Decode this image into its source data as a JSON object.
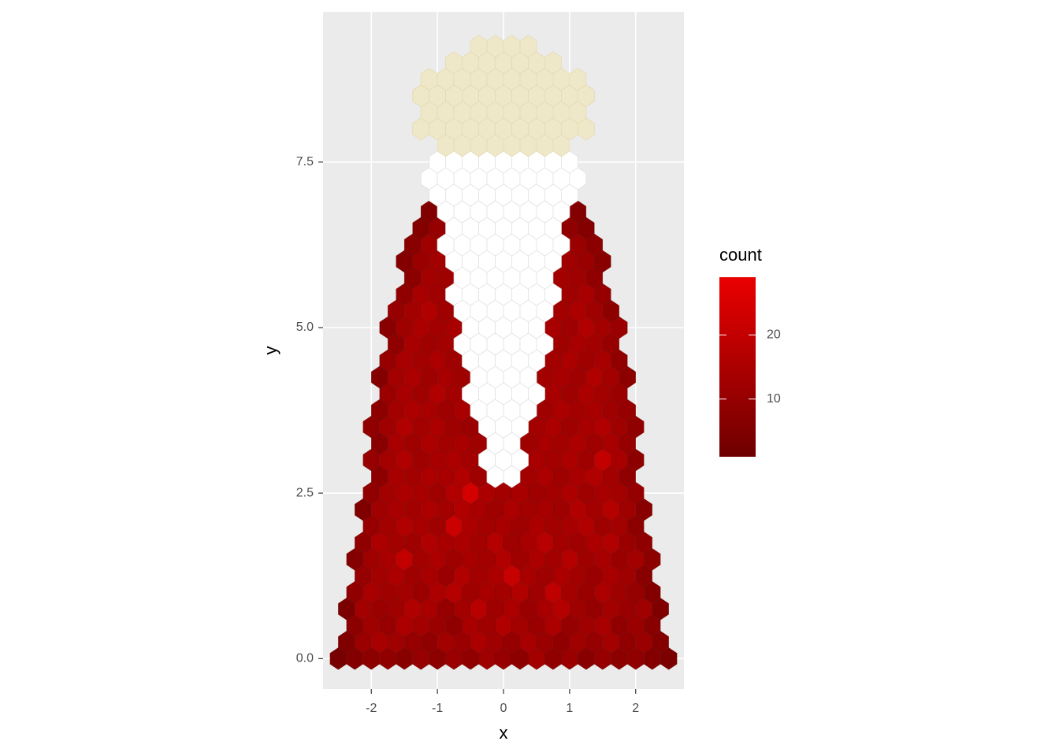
{
  "chart_data": {
    "type": "hexbin",
    "xlabel": "x",
    "ylabel": "y",
    "xlim": [
      -2.73,
      2.73
    ],
    "ylim": [
      -0.46,
      9.77
    ],
    "xticks": [
      -2,
      -1,
      0,
      1,
      2
    ],
    "yticks": [
      {
        "value": 0,
        "label": "0.0"
      },
      {
        "value": 2.5,
        "label": "2.5"
      },
      {
        "value": 5,
        "label": "5.0"
      },
      {
        "value": 7.5,
        "label": "7.5"
      }
    ],
    "grid": true,
    "binwidth": [
      0.25,
      0.25
    ],
    "legend": {
      "title": "count",
      "limits": [
        1,
        29
      ],
      "ticks": [
        10,
        20
      ],
      "colors": [
        "#6e0000",
        "#ea0000"
      ]
    },
    "bins": [
      {
        "y": 0,
        "x0": -2.5,
        "counts": [
          3,
          6,
          8,
          9,
          7,
          10,
          8,
          11,
          9,
          12,
          10,
          8,
          13,
          9,
          11,
          7,
          10,
          8,
          9,
          6,
          4
        ]
      },
      {
        "y": 0.25,
        "x0": -2.375,
        "counts": [
          5,
          11,
          14,
          12,
          10,
          9,
          13,
          11,
          15,
          12,
          10,
          14,
          11,
          9,
          12,
          10,
          13,
          9,
          11,
          6
        ]
      },
      {
        "y": 0.5,
        "x0": -2.25,
        "counts": [
          8,
          12,
          10,
          15,
          13,
          11,
          9,
          14,
          12,
          16,
          13,
          11,
          15,
          10,
          12,
          14,
          9,
          11,
          7
        ]
      },
      {
        "y": 0.75,
        "x0": -2.375,
        "counts": [
          4,
          13,
          11,
          12,
          16,
          14,
          10,
          13,
          18,
          12,
          15,
          11,
          14,
          17,
          12,
          10,
          13,
          11,
          12,
          5
        ]
      },
      {
        "y": 1,
        "x0": -2.25,
        "counts": [
          9,
          14,
          12,
          13,
          11,
          15,
          17,
          12,
          14,
          13,
          16,
          12,
          19,
          13,
          11,
          15,
          12,
          10,
          6
        ]
      },
      {
        "y": 1.25,
        "x0": -2.125,
        "counts": [
          10,
          13,
          15,
          12,
          14,
          11,
          16,
          13,
          15,
          21,
          14,
          12,
          15,
          13,
          11,
          14,
          12,
          7
        ]
      },
      {
        "y": 1.5,
        "x0": -2.25,
        "counts": [
          6,
          12,
          14,
          20,
          13,
          15,
          12,
          14,
          13,
          16,
          12,
          15,
          13,
          17,
          12,
          14,
          11,
          13,
          8
        ]
      },
      {
        "y": 1.75,
        "x0": -2.125,
        "counts": [
          9,
          15,
          13,
          12,
          16,
          14,
          15,
          13,
          17,
          12,
          14,
          18,
          13,
          12,
          15,
          16,
          11,
          9
        ]
      },
      {
        "y": 2,
        "x0": -2,
        "counts": [
          10,
          13,
          16,
          14,
          12,
          22,
          15,
          13,
          14,
          12,
          15,
          13,
          14,
          16,
          12,
          13,
          8
        ]
      },
      {
        "y": 2.25,
        "x0": -2.125,
        "counts": [
          5,
          12,
          14,
          13,
          15,
          13,
          16,
          14,
          12,
          15,
          13,
          14,
          12,
          16,
          13,
          17,
          12,
          7
        ]
      },
      {
        "y": 2.5,
        "x0": -2,
        "counts": [
          9,
          13,
          15,
          14,
          12,
          16,
          24,
          15,
          13,
          14,
          12,
          13,
          15,
          12,
          14,
          13,
          10
        ]
      },
      {
        "y": 2.75,
        "x0": -1.875,
        "counts": [
          8,
          14,
          13,
          15,
          14,
          16,
          12
        ]
      },
      {
        "y": 2.75,
        "x0": 0.375,
        "counts": [
          13,
          15,
          12,
          14,
          16,
          13,
          9
        ]
      },
      {
        "y": 3,
        "x0": -2,
        "counts": [
          10,
          13,
          16,
          12,
          14,
          15,
          13
        ]
      },
      {
        "y": 3,
        "x0": 0.5,
        "counts": [
          14,
          13,
          15,
          12,
          20,
          14,
          8
        ]
      },
      {
        "y": 3.25,
        "x0": -1.875,
        "counts": [
          7,
          14,
          12,
          15,
          13,
          14,
          12
        ]
      },
      {
        "y": 3.25,
        "x0": 0.375,
        "counts": [
          12,
          14,
          13,
          15,
          12,
          14,
          10
        ]
      },
      {
        "y": 3.5,
        "x0": -2,
        "counts": [
          9,
          12,
          16,
          13,
          15,
          12,
          11
        ]
      },
      {
        "y": 3.5,
        "x0": 0.5,
        "counts": [
          13,
          15,
          12,
          14,
          16,
          12,
          9
        ]
      },
      {
        "y": 3.75,
        "x0": -1.875,
        "counts": [
          8,
          13,
          15,
          14,
          12,
          14
        ]
      },
      {
        "y": 3.75,
        "x0": 0.625,
        "counts": [
          12,
          15,
          13,
          14,
          12,
          10
        ]
      },
      {
        "y": 4,
        "x0": -1.75,
        "counts": [
          11,
          14,
          12,
          16,
          13
        ]
      },
      {
        "y": 4,
        "x0": 0.75,
        "counts": [
          14,
          12,
          15,
          13,
          11
        ]
      },
      {
        "y": 4.25,
        "x0": -1.875,
        "counts": [
          6,
          13,
          15,
          12,
          14,
          12
        ]
      },
      {
        "y": 4.25,
        "x0": 0.625,
        "counts": [
          13,
          14,
          12,
          16,
          13,
          8
        ]
      },
      {
        "y": 4.5,
        "x0": -1.75,
        "counts": [
          10,
          14,
          13,
          15,
          12
        ]
      },
      {
        "y": 4.5,
        "x0": 0.75,
        "counts": [
          13,
          15,
          12,
          14,
          9
        ]
      },
      {
        "y": 4.75,
        "x0": -1.625,
        "counts": [
          9,
          14,
          12,
          13
        ]
      },
      {
        "y": 4.75,
        "x0": 0.875,
        "counts": [
          12,
          14,
          13,
          10
        ]
      },
      {
        "y": 5,
        "x0": -1.75,
        "counts": [
          7,
          12,
          15,
          13,
          14
        ]
      },
      {
        "y": 5,
        "x0": 0.75,
        "counts": [
          14,
          12,
          16,
          13,
          11
        ]
      },
      {
        "y": 5.25,
        "x0": -1.625,
        "counts": [
          10,
          13,
          16,
          12
        ]
      },
      {
        "y": 5.25,
        "x0": 0.875,
        "counts": [
          13,
          15,
          12,
          8
        ]
      },
      {
        "y": 5.5,
        "x0": -1.5,
        "counts": [
          9,
          14,
          12
        ]
      },
      {
        "y": 5.5,
        "x0": 1,
        "counts": [
          12,
          14,
          10
        ]
      },
      {
        "y": 5.75,
        "x0": -1.375,
        "counts": [
          8,
          13,
          12
        ]
      },
      {
        "y": 5.75,
        "x0": 0.875,
        "counts": [
          13,
          12,
          9
        ]
      },
      {
        "y": 6,
        "x0": -1.5,
        "counts": [
          6,
          11,
          13
        ]
      },
      {
        "y": 6,
        "x0": 1,
        "counts": [
          12,
          11,
          7
        ]
      },
      {
        "y": 6.25,
        "x0": -1.375,
        "counts": [
          7,
          12
        ]
      },
      {
        "y": 6.25,
        "x0": 1.125,
        "counts": [
          11,
          8
        ]
      },
      {
        "y": 6.5,
        "x0": -1.25,
        "counts": [
          6,
          10
        ]
      },
      {
        "y": 6.5,
        "x0": 1,
        "counts": [
          9,
          6
        ]
      },
      {
        "y": 6.75,
        "x0": -1.125,
        "counts": [
          5
        ]
      },
      {
        "y": 6.75,
        "x0": 1.125,
        "counts": [
          6
        ]
      }
    ],
    "beard": {
      "color": "#ffffff",
      "stroke": "#e2e2e2",
      "rows": [
        {
          "y": 2.75,
          "x": [
            -0.125,
            0.125
          ]
        },
        {
          "y": 3,
          "x": [
            -0.25,
            0.25
          ]
        },
        {
          "y": 3.25,
          "x": [
            -0.125,
            0.125
          ]
        },
        {
          "y": 3.5,
          "x": [
            -0.25,
            0.25
          ]
        },
        {
          "y": 3.75,
          "x": [
            -0.375,
            0.375
          ]
        },
        {
          "y": 4,
          "x": [
            -0.5,
            0.5
          ]
        },
        {
          "y": 4.25,
          "x": [
            -0.375,
            0.375
          ]
        },
        {
          "y": 4.5,
          "x": [
            -0.5,
            0.5
          ]
        },
        {
          "y": 4.75,
          "x": [
            -0.625,
            0.625
          ]
        },
        {
          "y": 5,
          "x": [
            -0.5,
            0.5
          ]
        },
        {
          "y": 5.25,
          "x": [
            -0.625,
            0.625
          ]
        },
        {
          "y": 5.5,
          "x": [
            -0.75,
            0.75
          ]
        },
        {
          "y": 5.75,
          "x": [
            -0.625,
            0.625
          ]
        },
        {
          "y": 6,
          "x": [
            -0.75,
            0.75
          ]
        },
        {
          "y": 6.25,
          "x": [
            -0.875,
            0.875
          ]
        },
        {
          "y": 6.5,
          "x": [
            -0.75,
            0.75
          ]
        },
        {
          "y": 6.75,
          "x": [
            -0.875,
            0.875
          ]
        },
        {
          "y": 7,
          "x": [
            -1,
            1
          ]
        },
        {
          "y": 7.25,
          "x": [
            -1.125,
            1.125
          ]
        },
        {
          "y": 7.5,
          "x": [
            -1,
            1
          ]
        }
      ]
    },
    "hat": {
      "color": "#efe8c8",
      "stroke": "#e3dab3",
      "rows": [
        {
          "y": 7.75,
          "x": [
            -0.875,
            0.875
          ]
        },
        {
          "y": 8,
          "x": [
            -1.25,
            1.25
          ]
        },
        {
          "y": 8.25,
          "x": [
            -1.125,
            1.125
          ]
        },
        {
          "y": 8.5,
          "x": [
            -1.25,
            1.25
          ]
        },
        {
          "y": 8.75,
          "x": [
            -1.125,
            1.125
          ]
        },
        {
          "y": 9,
          "x": [
            -0.75,
            0.75
          ]
        },
        {
          "y": 9.25,
          "x": [
            -0.375,
            0.375
          ]
        }
      ]
    }
  }
}
